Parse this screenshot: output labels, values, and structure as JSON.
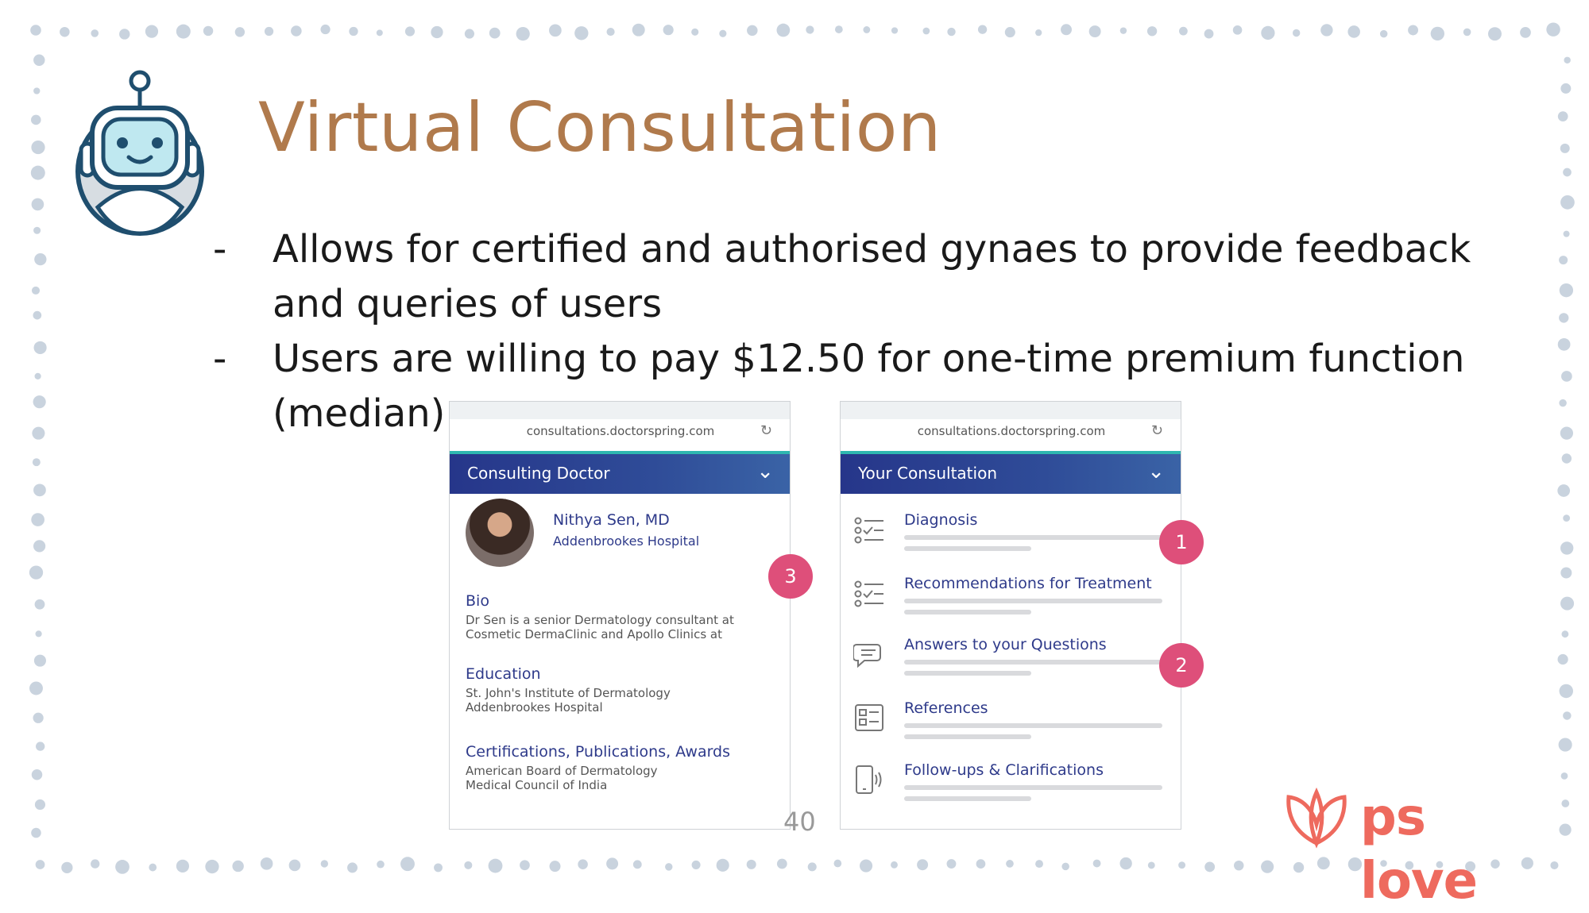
{
  "slide": {
    "title": "Virtual Consultation",
    "page_number": "40"
  },
  "bullets": [
    {
      "marker": "-",
      "text": "Allows for certified and authorised gynaes to provide feedback and queries of users"
    },
    {
      "marker": "-",
      "text": "Users are willing to pay $12.50 for one-time premium function (median)"
    }
  ],
  "phone_left": {
    "url": "consultations.doctorspring.com",
    "header": "Consulting Doctor",
    "doctor_name": "Nithya Sen, MD",
    "doctor_hospital": "Addenbrookes Hospital",
    "badge": "3",
    "sections": [
      {
        "heading": "Bio",
        "text": "Dr Sen is a senior Dermatology consultant at Cosmetic DermaClinic and Apollo Clinics at"
      },
      {
        "heading": "Education",
        "text": "St. John's Institute of Dermatology Addenbrookes Hospital"
      },
      {
        "heading": "Certifications, Publications, Awards",
        "text": "American Board of Dermatology Medical Council of India"
      }
    ]
  },
  "phone_right": {
    "url": "consultations.doctorspring.com",
    "header": "Your Consultation",
    "rows": [
      {
        "label": "Diagnosis",
        "icon": "checklist-icon"
      },
      {
        "label": "Recommendations for Treatment",
        "icon": "checklist-icon"
      },
      {
        "label": "Answers to your Questions",
        "icon": "chat-bubble-icon"
      },
      {
        "label": "References",
        "icon": "document-list-icon"
      },
      {
        "label": "Follow-ups & Clarifications",
        "icon": "phone-ring-icon"
      }
    ],
    "badges": [
      "1",
      "2"
    ]
  },
  "logo": {
    "text": "ps love",
    "color": "#ee6a5e"
  },
  "colors": {
    "title": "#b07a4c",
    "header_blue": "#26368a",
    "badge_pink": "#de4f7a",
    "border_dots": "#c9d3de"
  }
}
